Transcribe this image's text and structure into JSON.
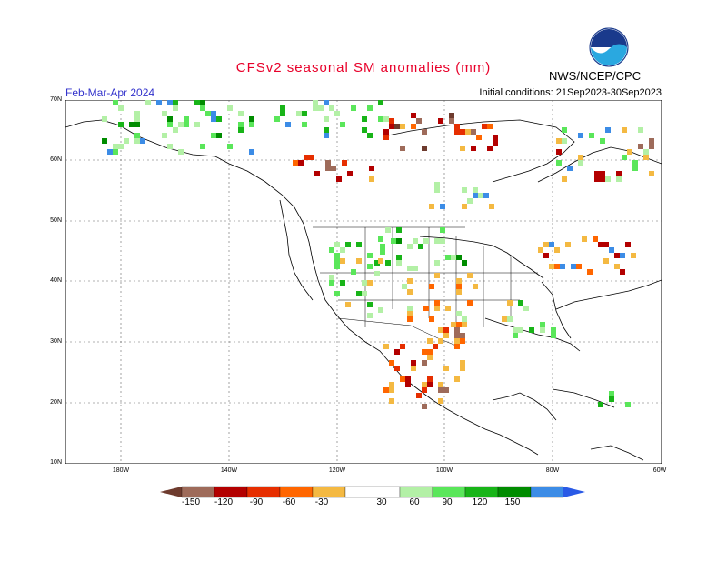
{
  "title": "CFSv2 seasonal SM anomalies (mm)",
  "organization": "NWS/NCEP/CPC",
  "logo_text": "NOAA",
  "period": "Feb-Mar-Apr 2024",
  "initial_conditions": "Initial conditions: 21Sep2023-30Sep2023",
  "lat_labels": [
    "70N",
    "60N",
    "50N",
    "40N",
    "30N",
    "20N",
    "10N"
  ],
  "lon_labels": [
    "180W",
    "140W",
    "120W",
    "100W",
    "80W",
    "60W"
  ],
  "colorbar": {
    "labels": [
      "-150",
      "-120",
      "-90",
      "-60",
      "-30",
      "30",
      "60",
      "90",
      "120",
      "150"
    ],
    "colors": [
      "#6e3b2e",
      "#9e6b5a",
      "#b30000",
      "#e62e00",
      "#ff6600",
      "#f4b942",
      "#ffffff",
      "#b3f0a6",
      "#5ae65a",
      "#18b418",
      "#008c00",
      "#3c8ce6",
      "#2a5ae6"
    ]
  }
}
